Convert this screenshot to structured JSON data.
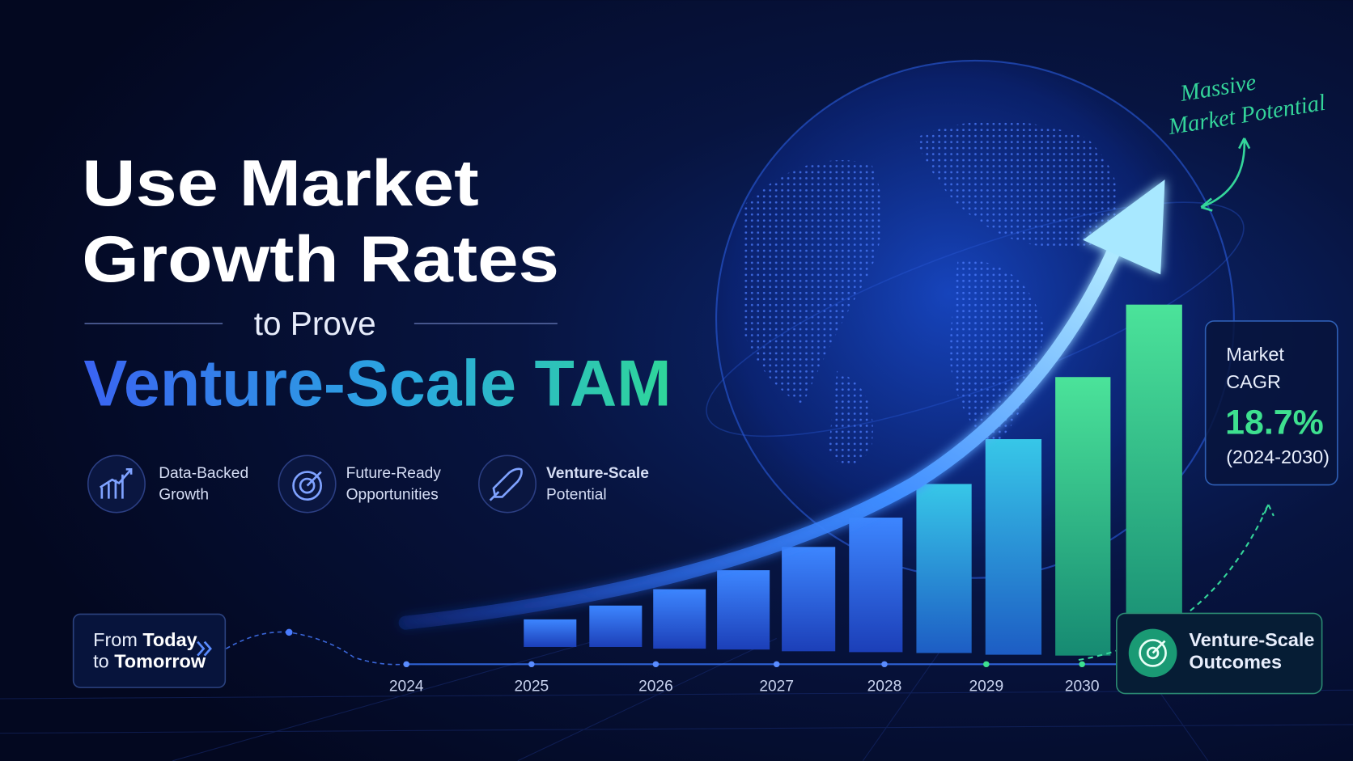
{
  "title": {
    "line1": "Use Market",
    "line2": "Growth Rates",
    "connector": "to Prove",
    "highlight": "Venture-Scale TAM"
  },
  "features": [
    {
      "line1": "Data-Backed",
      "line2": "Growth"
    },
    {
      "line1": "Future-Ready",
      "line2": "Opportunities"
    },
    {
      "line1": "Venture-Scale",
      "line2": "Potential"
    }
  ],
  "annotation": {
    "line1": "Massive",
    "line2": "Market Potential"
  },
  "cagr_card": {
    "label_line1": "Market",
    "label_line2": "CAGR",
    "value": "18.7%",
    "period": "(2024-2030)"
  },
  "timeline": {
    "start": {
      "line1_regular": "From",
      "line1_bold": "Today",
      "line2_regular": "to",
      "line2_bold": "Tomorrow"
    },
    "years": [
      "2024",
      "2025",
      "2026",
      "2027",
      "2028",
      "2029",
      "2030"
    ]
  },
  "outcome_card": {
    "line1": "Venture-Scale",
    "line2": "Outcomes"
  }
}
